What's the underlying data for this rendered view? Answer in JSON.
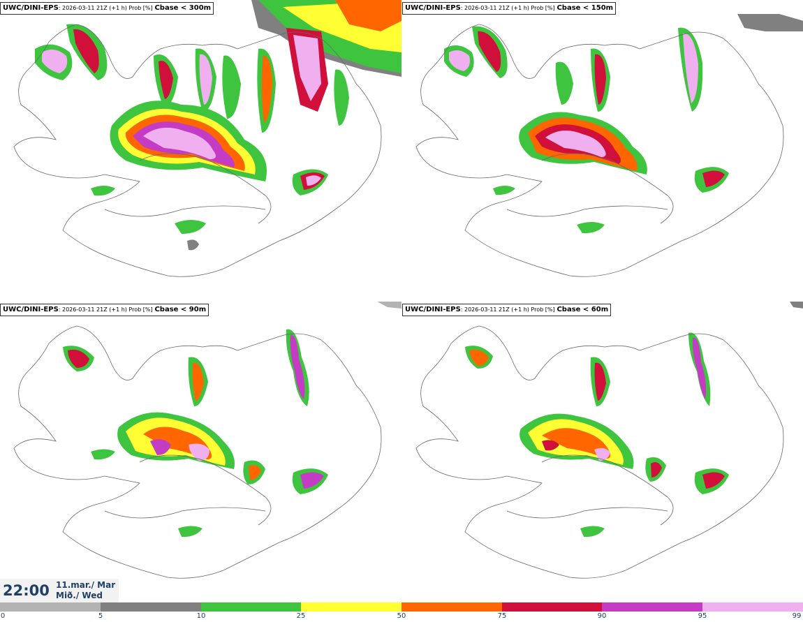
{
  "panels": [
    {
      "model": "UWC/DINI-EPS",
      "meta": ": 2026-03-11 21Z (+1 h) Prob [%]",
      "threshold": "Cbase < 300m"
    },
    {
      "model": "UWC/DINI-EPS",
      "meta": ": 2026-03-11 21Z (+1 h) Prob [%]",
      "threshold": "Cbase < 150m"
    },
    {
      "model": "UWC/DINI-EPS",
      "meta": ": 2026-03-11 21Z (+1 h) Prob [%]",
      "threshold": "Cbase < 90m"
    },
    {
      "model": "UWC/DINI-EPS",
      "meta": ": 2026-03-11 21Z (+1 h) Prob [%]",
      "threshold": "Cbase < 60m"
    }
  ],
  "time": {
    "clock": "22:00",
    "date_line1": "11.mar./ Mar",
    "date_line2": "Mið./ Wed"
  },
  "legend": {
    "ticks": [
      "0",
      "5",
      "10",
      "25",
      "50",
      "75",
      "90",
      "95",
      "99"
    ],
    "colors": [
      "#ffffff",
      "#b3b3b3",
      "#808080",
      "#3ec43e",
      "#ffff33",
      "#ff6600",
      "#d0103a",
      "#c43cc4",
      "#f0b0f0"
    ]
  },
  "palette": {
    "p5": "#b3b3b3",
    "p10": "#808080",
    "p25": "#3ec43e",
    "p50": "#ffff33",
    "p75": "#ff6600",
    "p90": "#d0103a",
    "p95": "#c43cc4",
    "p99": "#f0b0f0"
  }
}
